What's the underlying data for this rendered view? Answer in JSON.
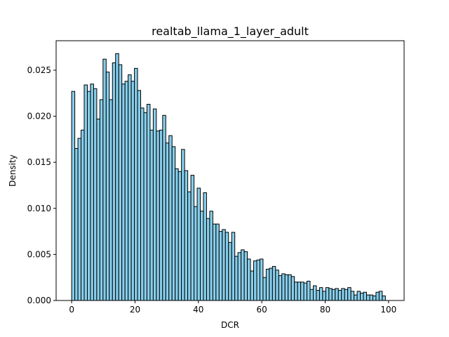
{
  "chart_data": {
    "type": "bar",
    "title": "realtab_llama_1_layer_adult",
    "xlabel": "DCR",
    "ylabel": "Density",
    "xlim": [
      -4.9,
      104.9
    ],
    "ylim": [
      0,
      0.0282
    ],
    "xticks": [
      "0",
      "20",
      "40",
      "60",
      "80",
      "100"
    ],
    "xtick_values": [
      0,
      20,
      40,
      60,
      80,
      100
    ],
    "yticks": [
      "0.000",
      "0.005",
      "0.010",
      "0.015",
      "0.020",
      "0.025"
    ],
    "ytick_values": [
      0.0,
      0.005,
      0.01,
      0.015,
      0.02,
      0.025
    ],
    "grid": false,
    "bar_color": "#87ceeb",
    "edge_color": "#000000",
    "bin_start": 0,
    "bin_width": 0.99,
    "values": [
      0.0227,
      0.0165,
      0.0176,
      0.0185,
      0.0234,
      0.0227,
      0.0235,
      0.023,
      0.0197,
      0.0218,
      0.0262,
      0.0248,
      0.0218,
      0.0258,
      0.0268,
      0.0256,
      0.0235,
      0.0238,
      0.0245,
      0.0238,
      0.0252,
      0.0228,
      0.0209,
      0.0204,
      0.0213,
      0.0185,
      0.0208,
      0.0184,
      0.0185,
      0.0201,
      0.0171,
      0.0179,
      0.0167,
      0.0143,
      0.014,
      0.0164,
      0.0141,
      0.0118,
      0.0136,
      0.0102,
      0.0122,
      0.0097,
      0.0117,
      0.0089,
      0.0097,
      0.0083,
      0.0083,
      0.0075,
      0.0077,
      0.0074,
      0.0063,
      0.0074,
      0.0048,
      0.0052,
      0.0055,
      0.0053,
      0.0045,
      0.0032,
      0.0043,
      0.0044,
      0.0045,
      0.0025,
      0.0034,
      0.0035,
      0.0037,
      0.0033,
      0.0027,
      0.0029,
      0.0028,
      0.0028,
      0.0026,
      0.002,
      0.002,
      0.002,
      0.0019,
      0.0021,
      0.0012,
      0.0016,
      0.0011,
      0.0014,
      0.001,
      0.0014,
      0.0013,
      0.0012,
      0.0013,
      0.0011,
      0.0013,
      0.0012,
      0.0014,
      0.001,
      0.0006,
      0.001,
      0.0008,
      0.0009,
      0.0006,
      0.0006,
      0.0005,
      0.0009,
      0.001,
      0.0005
    ]
  }
}
